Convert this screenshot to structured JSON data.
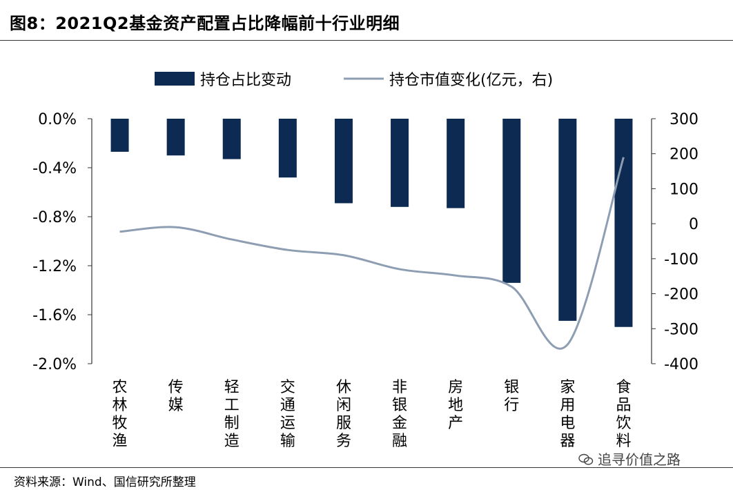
{
  "title": "图8：2021Q2基金资产配置占比降幅前十行业明细",
  "source": "资料来源：Wind、国信研究所整理",
  "watermark": "追寻价值之路",
  "colors": {
    "bar": "#0d2a52",
    "line": "#8e9eb2",
    "axis": "#333333"
  },
  "chart_data": {
    "type": "bar",
    "categories": [
      "农林牧渔",
      "传媒",
      "轻工制造",
      "交通运输",
      "休闲服务",
      "非银金融",
      "房地产",
      "银行",
      "家用电器",
      "食品饮料"
    ],
    "series": [
      {
        "name": "持仓占比变动",
        "type": "bar",
        "axis": "left",
        "values": [
          -0.27,
          -0.3,
          -0.33,
          -0.48,
          -0.69,
          -0.72,
          -0.73,
          -1.34,
          -1.65,
          -1.7
        ]
      },
      {
        "name": "持仓市值变化(亿元，右)",
        "type": "line",
        "axis": "right",
        "values": [
          -23,
          -10,
          -45,
          -75,
          -90,
          -130,
          -148,
          -180,
          -345,
          190
        ]
      }
    ],
    "y_left": {
      "min": -2.0,
      "max": 0.0,
      "ticks": [
        "0.0%",
        "-0.4%",
        "-0.8%",
        "-1.2%",
        "-1.6%",
        "-2.0%"
      ]
    },
    "y_right": {
      "min": -400,
      "max": 300,
      "ticks": [
        "300",
        "200",
        "100",
        "0",
        "-100",
        "-200",
        "-300",
        "-400"
      ]
    },
    "legend_position": "top",
    "grid": false
  }
}
